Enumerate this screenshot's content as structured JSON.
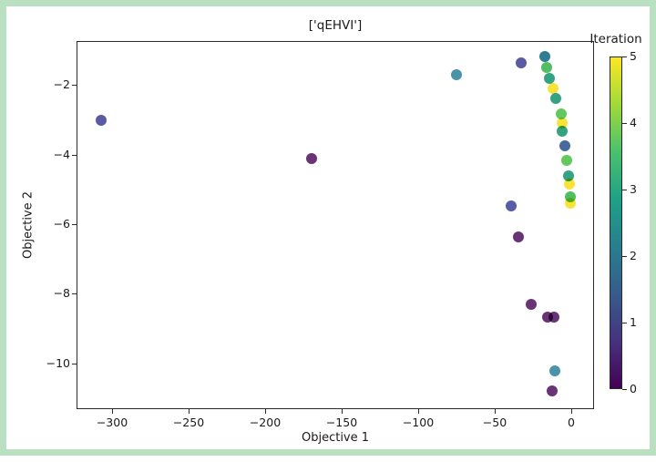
{
  "figure": {
    "border_color": "#b9e1c1",
    "background_color": "#ffffff"
  },
  "chart_data": {
    "type": "scatter",
    "title": "['qEHVI']",
    "xlabel": "Objective 1",
    "ylabel": "Objective 2",
    "xlim": [
      -323,
      15
    ],
    "ylim": [
      -11.3,
      -0.72
    ],
    "xticks": [
      -300,
      -250,
      -200,
      -150,
      -100,
      -50,
      0
    ],
    "yticks": [
      -2,
      -4,
      -6,
      -8,
      -10
    ],
    "grid": false,
    "legend_position": "none",
    "colorbar": {
      "title": "Iteration",
      "min": 0,
      "max": 5,
      "ticks": [
        0,
        1,
        2,
        3,
        4,
        5
      ],
      "colormap": "viridis",
      "gradient_stops_bottom_to_top": [
        "#440154",
        "#46327e",
        "#365c8d",
        "#277f8e",
        "#1fa187",
        "#4ac16d",
        "#a0da39",
        "#fde725"
      ]
    },
    "points": [
      {
        "x": -308.0,
        "y": -2.98,
        "iteration": 1,
        "color": "#5a5ba3"
      },
      {
        "x": -170.5,
        "y": -4.08,
        "iteration": 0,
        "color": "#693476"
      },
      {
        "x": -75.3,
        "y": -1.68,
        "iteration": 2,
        "color": "#4a93a8"
      },
      {
        "x": -33.6,
        "y": -1.33,
        "iteration": 1,
        "color": "#5a5ba3"
      },
      {
        "x": -17.9,
        "y": -1.14,
        "iteration": 2,
        "color": "#2f7d92"
      },
      {
        "x": -16.4,
        "y": -1.45,
        "iteration": 4,
        "color": "#52bd63"
      },
      {
        "x": -14.9,
        "y": -1.77,
        "iteration": 3,
        "color": "#35a383"
      },
      {
        "x": -12.5,
        "y": -2.05,
        "iteration": 5,
        "color": "#f8e33b"
      },
      {
        "x": -11.0,
        "y": -2.35,
        "iteration": 3,
        "color": "#35a383"
      },
      {
        "x": -7.4,
        "y": -2.79,
        "iteration": 4,
        "color": "#63c85e"
      },
      {
        "x": -6.8,
        "y": -3.06,
        "iteration": 5,
        "color": "#f8e33b"
      },
      {
        "x": -6.3,
        "y": -3.3,
        "iteration": 3,
        "color": "#35a383"
      },
      {
        "x": -4.5,
        "y": -3.71,
        "iteration": 1,
        "color": "#47699e"
      },
      {
        "x": -3.3,
        "y": -4.13,
        "iteration": 4,
        "color": "#63c85e"
      },
      {
        "x": -2.4,
        "y": -4.57,
        "iteration": 3,
        "color": "#35a383"
      },
      {
        "x": -1.8,
        "y": -4.81,
        "iteration": 5,
        "color": "#f8e33b"
      },
      {
        "x": -1.2,
        "y": -5.18,
        "iteration": 4,
        "color": "#52bd63"
      },
      {
        "x": -1.2,
        "y": -5.37,
        "iteration": 5,
        "color": "#f8e33b"
      },
      {
        "x": -39.6,
        "y": -5.44,
        "iteration": 1,
        "color": "#555ea6"
      },
      {
        "x": -35.1,
        "y": -6.33,
        "iteration": 0,
        "color": "#693476"
      },
      {
        "x": -26.8,
        "y": -8.26,
        "iteration": 0,
        "color": "#693476"
      },
      {
        "x": -15.8,
        "y": -8.63,
        "iteration": 0,
        "color": "#693476"
      },
      {
        "x": -11.9,
        "y": -8.63,
        "iteration": 0,
        "color": "#693476"
      },
      {
        "x": -11.3,
        "y": -10.17,
        "iteration": 2,
        "color": "#4a93a8"
      },
      {
        "x": -12.8,
        "y": -10.76,
        "iteration": 0,
        "color": "#693476"
      }
    ]
  }
}
